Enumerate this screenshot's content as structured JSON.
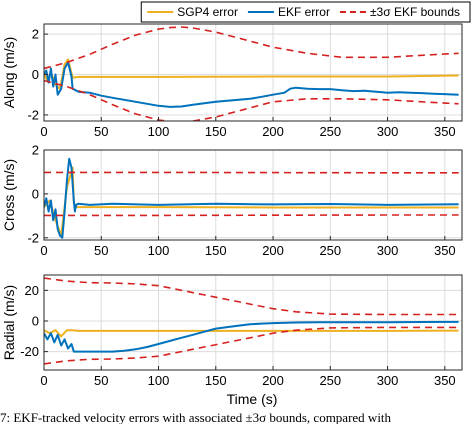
{
  "legend": {
    "items": [
      {
        "label": "SGP4 error",
        "color": "#EDB120",
        "style": "solid"
      },
      {
        "label": "EKF error",
        "color": "#0072BD",
        "style": "solid"
      },
      {
        "label": "±3σ EKF bounds",
        "color": "#D62020",
        "style": "dashed"
      }
    ],
    "placement": "top-center"
  },
  "caption": "7: EKF-tracked velocity errors with associated ±3σ bounds, compared with",
  "chart_data": [
    {
      "type": "line",
      "ylabel": "Along (m/s)",
      "xlim": [
        0,
        365
      ],
      "ylim": [
        -2.3,
        2.5
      ],
      "xticks": [
        "0",
        "50",
        "100",
        "150",
        "200",
        "250",
        "300",
        "350"
      ],
      "yticks": [
        {
          "v": 2,
          "label": "2"
        },
        {
          "v": 0,
          "label": "0"
        },
        {
          "v": -2,
          "label": "-2"
        }
      ],
      "grid": true,
      "series": [
        {
          "name": "SGP4 error",
          "color": "#EDB120",
          "dash": false,
          "x": [
            0,
            3,
            6,
            10,
            14,
            18,
            21,
            23,
            25,
            30,
            40,
            100,
            200,
            300,
            362
          ],
          "y": [
            0.0,
            -0.3,
            0.1,
            -0.5,
            -0.7,
            0.5,
            0.75,
            0.3,
            -0.15,
            -0.12,
            -0.12,
            -0.12,
            -0.1,
            -0.1,
            -0.05
          ]
        },
        {
          "name": "EKF error",
          "color": "#0072BD",
          "dash": false,
          "x": [
            0,
            2,
            4,
            6,
            8,
            10,
            12,
            15,
            18,
            21,
            24,
            25,
            30,
            40,
            50,
            60,
            70,
            80,
            90,
            100,
            110,
            120,
            130,
            140,
            150,
            160,
            170,
            180,
            190,
            200,
            210,
            215,
            220,
            230,
            240,
            250,
            260,
            270,
            280,
            290,
            300,
            310,
            320,
            330,
            340,
            350,
            362
          ],
          "y": [
            0.0,
            0.2,
            -0.4,
            0.3,
            -0.6,
            0.0,
            -1.0,
            -0.7,
            0.3,
            0.6,
            -0.1,
            -0.7,
            -0.85,
            -0.9,
            -1.05,
            -1.15,
            -1.25,
            -1.35,
            -1.45,
            -1.55,
            -1.6,
            -1.58,
            -1.5,
            -1.42,
            -1.35,
            -1.3,
            -1.25,
            -1.2,
            -1.1,
            -1.0,
            -0.9,
            -0.7,
            -0.65,
            -0.7,
            -0.72,
            -0.72,
            -0.78,
            -0.82,
            -0.8,
            -0.85,
            -0.9,
            -0.88,
            -0.9,
            -0.92,
            -0.95,
            -0.97,
            -1.0
          ]
        },
        {
          "name": "+3σ",
          "color": "#D62020",
          "dash": true,
          "x": [
            0,
            20,
            40,
            60,
            80,
            100,
            110,
            120,
            130,
            150,
            170,
            200,
            230,
            260,
            300,
            330,
            362
          ],
          "y": [
            0.3,
            0.6,
            1.0,
            1.5,
            1.95,
            2.25,
            2.32,
            2.35,
            2.3,
            2.1,
            1.8,
            1.35,
            1.05,
            0.85,
            0.85,
            0.95,
            1.05
          ]
        },
        {
          "name": "-3σ",
          "color": "#D62020",
          "dash": true,
          "x": [
            0,
            20,
            40,
            60,
            80,
            100,
            110,
            120,
            130,
            150,
            170,
            200,
            230,
            260,
            300,
            330,
            362
          ],
          "y": [
            -0.3,
            -0.6,
            -1.0,
            -1.5,
            -1.95,
            -2.25,
            -2.32,
            -2.35,
            -2.3,
            -2.1,
            -1.8,
            -1.35,
            -1.2,
            -1.2,
            -1.25,
            -1.35,
            -1.45
          ]
        }
      ]
    },
    {
      "type": "line",
      "ylabel": "Cross (m/s)",
      "xlim": [
        0,
        365
      ],
      "ylim": [
        -2.1,
        2.0
      ],
      "xticks": [
        "0",
        "50",
        "100",
        "150",
        "200",
        "250",
        "300",
        "350"
      ],
      "yticks": [
        {
          "v": 2,
          "label": "2"
        },
        {
          "v": 0,
          "label": "0"
        },
        {
          "v": -2,
          "label": "-2"
        }
      ],
      "grid": true,
      "series": [
        {
          "name": "SGP4 error",
          "color": "#EDB120",
          "dash": false,
          "x": [
            0,
            5,
            10,
            15,
            20,
            25,
            26,
            28,
            40,
            100,
            200,
            300,
            362
          ],
          "y": [
            -0.6,
            -0.3,
            -1.2,
            -1.9,
            0.3,
            1.2,
            -0.4,
            -0.6,
            -0.6,
            -0.6,
            -0.62,
            -0.62,
            -0.62
          ]
        },
        {
          "name": "EKF error",
          "color": "#0072BD",
          "dash": false,
          "x": [
            0,
            2,
            4,
            6,
            8,
            10,
            12,
            14,
            16,
            18,
            20,
            22,
            24,
            26,
            27,
            28,
            30,
            40,
            60,
            100,
            150,
            200,
            250,
            300,
            362
          ],
          "y": [
            -0.6,
            -0.2,
            -0.8,
            -0.3,
            -1.2,
            -0.7,
            -1.6,
            -1.9,
            -2.0,
            -0.8,
            0.6,
            1.6,
            1.2,
            -0.3,
            -0.8,
            -0.5,
            -0.45,
            -0.5,
            -0.45,
            -0.5,
            -0.45,
            -0.48,
            -0.46,
            -0.5,
            -0.47
          ]
        },
        {
          "name": "+3σ",
          "color": "#D62020",
          "dash": true,
          "x": [
            0,
            100,
            200,
            300,
            362
          ],
          "y": [
            0.98,
            0.98,
            0.97,
            0.96,
            0.96
          ]
        },
        {
          "name": "-3σ",
          "color": "#D62020",
          "dash": true,
          "x": [
            0,
            100,
            200,
            300,
            362
          ],
          "y": [
            -0.98,
            -0.98,
            -0.97,
            -0.96,
            -0.96
          ]
        }
      ]
    },
    {
      "type": "line",
      "ylabel": "Radial (m/s)",
      "xlim": [
        0,
        365
      ],
      "ylim": [
        -32,
        30
      ],
      "xticks": [
        "0",
        "50",
        "100",
        "150",
        "200",
        "250",
        "300",
        "350"
      ],
      "yticks": [
        {
          "v": 20,
          "label": "20"
        },
        {
          "v": 0,
          "label": "0"
        },
        {
          "v": -20,
          "label": "-20"
        }
      ],
      "grid": true,
      "series": [
        {
          "name": "SGP4 error",
          "color": "#EDB120",
          "dash": false,
          "x": [
            0,
            5,
            10,
            15,
            20,
            25,
            30,
            50,
            100,
            200,
            300,
            362
          ],
          "y": [
            -6,
            -8,
            -6,
            -10,
            -6,
            -6,
            -6.5,
            -6.5,
            -6.5,
            -6.5,
            -6.5,
            -6.3
          ]
        },
        {
          "name": "EKF error",
          "color": "#0072BD",
          "dash": false,
          "x": [
            0,
            3,
            6,
            9,
            12,
            15,
            18,
            21,
            24,
            26,
            30,
            40,
            50,
            60,
            70,
            80,
            90,
            100,
            110,
            120,
            130,
            140,
            150,
            160,
            170,
            180,
            190,
            200,
            220,
            240,
            260,
            280,
            300,
            330,
            362
          ],
          "y": [
            -8,
            -12,
            -8,
            -14,
            -9,
            -16,
            -12,
            -18,
            -15,
            -20,
            -20,
            -20,
            -20,
            -20,
            -19.5,
            -18.5,
            -17,
            -15,
            -13,
            -11,
            -9,
            -7,
            -5,
            -4,
            -3,
            -2.2,
            -1.7,
            -1.4,
            -1.0,
            -0.8,
            -0.8,
            -0.8,
            -0.8,
            -0.7,
            -0.6
          ]
        },
        {
          "name": "+3σ",
          "color": "#D62020",
          "dash": true,
          "x": [
            0,
            20,
            40,
            60,
            80,
            100,
            120,
            140,
            160,
            180,
            200,
            220,
            250,
            300,
            362
          ],
          "y": [
            28,
            26,
            25,
            24.8,
            24.2,
            23,
            20,
            17,
            14,
            11,
            8,
            6,
            4.5,
            4.2,
            4.2
          ]
        },
        {
          "name": "-3σ",
          "color": "#D62020",
          "dash": true,
          "x": [
            0,
            20,
            40,
            60,
            80,
            100,
            120,
            140,
            160,
            180,
            200,
            220,
            250,
            300,
            362
          ],
          "y": [
            -28,
            -26,
            -25,
            -24.8,
            -24.2,
            -23,
            -20,
            -17,
            -14,
            -11,
            -8,
            -6,
            -4.5,
            -4.2,
            -4.2
          ]
        }
      ]
    }
  ],
  "xlabel": "Time (s)"
}
